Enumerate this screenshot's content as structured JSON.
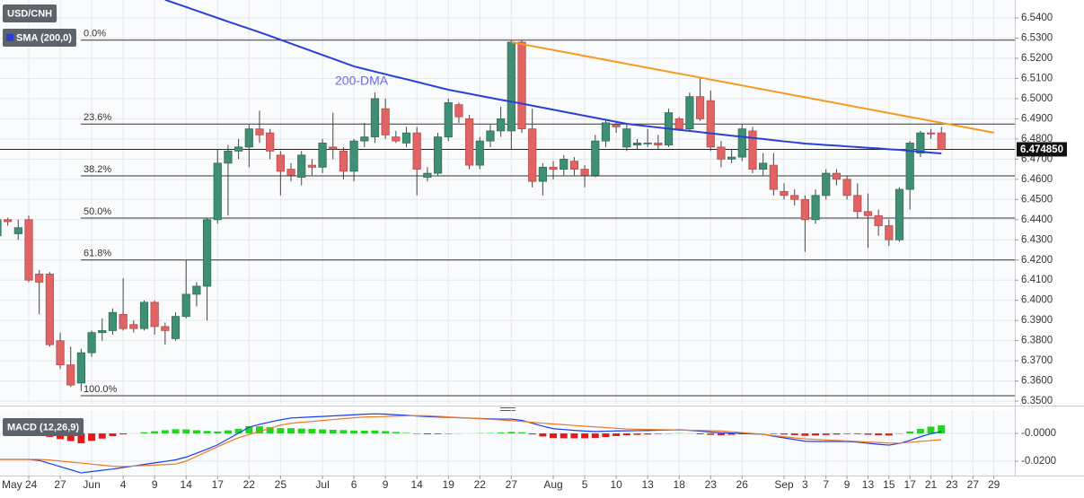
{
  "chart_data": [
    {
      "type": "candlestick",
      "title": "USD/CNH",
      "up_color": "#3f8f74",
      "down_color": "#e06464",
      "open": [
        6.432,
        6.44,
        6.433,
        6.44,
        6.413,
        6.413,
        6.38,
        6.368,
        6.359,
        6.374,
        6.384,
        6.385,
        6.393,
        6.388,
        6.386,
        6.399,
        6.387,
        6.381,
        6.392,
        6.403,
        6.407,
        6.44,
        6.468,
        6.474,
        6.476,
        6.485,
        6.483,
        6.472,
        6.465,
        6.461,
        6.467,
        6.466,
        6.476,
        6.474,
        6.464,
        6.479,
        6.481,
        6.495,
        6.481,
        6.478,
        6.483,
        6.461,
        6.463,
        6.481,
        6.497,
        6.49,
        6.467,
        6.479,
        6.484,
        6.484,
        6.528,
        6.485,
        6.459,
        6.466,
        6.465,
        6.469,
        6.465,
        6.462,
        6.479,
        6.487,
        6.476,
        6.477,
        6.478,
        6.478,
        6.477,
        6.49,
        6.485,
        6.501,
        6.499,
        6.476,
        6.47,
        6.471,
        6.484,
        6.465,
        6.467,
        6.454,
        6.452,
        6.45,
        6.44,
        6.452,
        6.463,
        6.46,
        6.452,
        6.444,
        6.442,
        6.437,
        6.43,
        6.455,
        6.473,
        6.483,
        6.483
      ],
      "high": [
        6.442,
        6.441,
        6.44,
        6.442,
        6.415,
        6.414,
        6.384,
        6.377,
        6.376,
        6.385,
        6.391,
        6.396,
        6.411,
        6.39,
        6.4,
        6.4,
        6.389,
        6.394,
        6.42,
        6.409,
        6.441,
        6.475,
        6.477,
        6.48,
        6.487,
        6.494,
        6.485,
        6.474,
        6.468,
        6.474,
        6.47,
        6.48,
        6.493,
        6.476,
        6.48,
        6.488,
        6.503,
        6.5,
        6.484,
        6.486,
        6.486,
        6.466,
        6.483,
        6.5,
        6.498,
        6.492,
        6.481,
        6.487,
        6.496,
        6.529,
        6.529,
        6.495,
        6.468,
        6.469,
        6.472,
        6.471,
        6.467,
        6.482,
        6.49,
        6.489,
        6.487,
        6.48,
        6.485,
        6.482,
        6.495,
        6.491,
        6.503,
        6.51,
        6.504,
        6.479,
        6.475,
        6.487,
        6.486,
        6.473,
        6.473,
        6.458,
        6.455,
        6.452,
        6.455,
        6.465,
        6.465,
        6.462,
        6.458,
        6.453,
        6.445,
        6.44,
        6.456,
        6.479,
        6.484,
        6.485,
        6.486
      ],
      "low": [
        6.43,
        6.437,
        6.43,
        6.409,
        6.393,
        6.377,
        6.366,
        6.357,
        6.355,
        6.372,
        6.38,
        6.383,
        6.385,
        6.384,
        6.385,
        6.383,
        6.378,
        6.38,
        6.391,
        6.397,
        6.39,
        6.438,
        6.442,
        6.47,
        6.466,
        6.478,
        6.47,
        6.452,
        6.459,
        6.457,
        6.462,
        6.463,
        6.47,
        6.46,
        6.459,
        6.476,
        6.478,
        6.48,
        6.478,
        6.476,
        6.452,
        6.459,
        6.462,
        6.479,
        6.488,
        6.465,
        6.465,
        6.476,
        6.481,
        6.475,
        6.483,
        6.456,
        6.452,
        6.46,
        6.462,
        6.462,
        6.456,
        6.461,
        6.476,
        6.483,
        6.474,
        6.475,
        6.476,
        6.475,
        6.476,
        6.484,
        6.484,
        6.489,
        6.474,
        6.466,
        6.468,
        6.469,
        6.463,
        6.462,
        6.452,
        6.45,
        6.447,
        6.424,
        6.438,
        6.45,
        6.457,
        6.45,
        6.441,
        6.426,
        6.432,
        6.427,
        6.429,
        6.445,
        6.471,
        6.48,
        6.4745
      ],
      "close": [
        6.44,
        6.439,
        6.436,
        6.41,
        6.409,
        6.378,
        6.368,
        6.358,
        6.374,
        6.384,
        6.385,
        6.394,
        6.386,
        6.386,
        6.399,
        6.387,
        6.385,
        6.392,
        6.403,
        6.407,
        6.44,
        6.468,
        6.474,
        6.476,
        6.485,
        6.482,
        6.474,
        6.464,
        6.462,
        6.472,
        6.466,
        6.478,
        6.475,
        6.464,
        6.479,
        6.481,
        6.5,
        6.482,
        6.479,
        6.483,
        6.465,
        6.463,
        6.481,
        6.498,
        6.491,
        6.467,
        6.479,
        6.484,
        6.49,
        6.528,
        6.485,
        6.459,
        6.466,
        6.465,
        6.47,
        6.465,
        6.462,
        6.479,
        6.488,
        6.486,
        6.485,
        6.478,
        6.478,
        6.477,
        6.493,
        6.485,
        6.501,
        6.49,
        6.476,
        6.47,
        6.471,
        6.485,
        6.465,
        6.468,
        6.455,
        6.452,
        6.45,
        6.44,
        6.452,
        6.463,
        6.46,
        6.452,
        6.444,
        6.442,
        6.437,
        6.43,
        6.455,
        6.478,
        6.483,
        6.4825,
        6.47485
      ],
      "overlays": [
        {
          "name": "SMA (200,0)",
          "color": "#2b3fd6",
          "values": [
            null,
            null,
            null,
            null,
            null,
            null,
            null,
            null,
            null,
            null,
            null,
            null,
            null,
            null,
            null,
            null,
            6.549,
            6.5472,
            6.5454,
            6.5436,
            6.5418,
            6.54,
            6.5382,
            6.5364,
            6.5347,
            6.5329,
            6.5311,
            6.5292,
            6.5273,
            6.5254,
            6.5235,
            6.5216,
            6.5198,
            6.5179,
            6.516,
            6.5147,
            6.5134,
            6.5121,
            6.5108,
            6.5096,
            6.5083,
            6.507,
            6.5057,
            6.5044,
            6.5034,
            6.5024,
            6.5014,
            6.5004,
            6.4994,
            6.4985,
            6.4975,
            6.4965,
            6.4955,
            6.4945,
            6.4935,
            6.4925,
            6.4915,
            6.4905,
            6.4895,
            6.4885,
            6.4875,
            6.4869,
            6.4863,
            6.4857,
            6.4851,
            6.4845,
            6.484,
            6.4834,
            6.4828,
            6.4822,
            6.4816,
            6.4811,
            6.4805,
            6.48,
            6.4794,
            6.4788,
            6.4783,
            6.4777,
            6.4774,
            6.477,
            6.4767,
            6.4763,
            6.476,
            6.4756,
            6.4753,
            6.4749,
            6.4746,
            6.4741,
            6.4737,
            6.4732,
            6.4728
          ]
        }
      ],
      "annotations": [
        {
          "text": "200-DMA",
          "color": "#6b6bea"
        }
      ],
      "trendline": {
        "color": "#f59a1e",
        "x": [
          49,
          95
        ],
        "values": [
          6.528,
          6.4831
        ]
      },
      "fib_levels": [
        {
          "label": "0.0%",
          "value": 6.529
        },
        {
          "label": "23.6%",
          "value": 6.4874
        },
        {
          "label": "38.2%",
          "value": 6.4617
        },
        {
          "label": "50.0%",
          "value": 6.4408
        },
        {
          "label": "61.8%",
          "value": 6.42
        },
        {
          "label": "100.0%",
          "value": 6.3527
        }
      ],
      "last_price": {
        "value": 6.47485,
        "label": "6.474850"
      },
      "xlim": [
        0.26,
        97
      ],
      "xticks": [
        {
          "value": 3,
          "label": "May 24"
        },
        {
          "value": 6,
          "label": "27"
        },
        {
          "value": 9,
          "label": "Jun"
        },
        {
          "value": 12,
          "label": "4"
        },
        {
          "value": 15,
          "label": "9"
        },
        {
          "value": 18,
          "label": "14"
        },
        {
          "value": 21,
          "label": "17"
        },
        {
          "value": 24,
          "label": "22"
        },
        {
          "value": 27,
          "label": "25"
        },
        {
          "value": 31,
          "label": "Jul"
        },
        {
          "value": 34,
          "label": "6"
        },
        {
          "value": 37,
          "label": "9"
        },
        {
          "value": 40,
          "label": "14"
        },
        {
          "value": 43,
          "label": "19"
        },
        {
          "value": 46,
          "label": "22"
        },
        {
          "value": 49,
          "label": "27"
        },
        {
          "value": 53,
          "label": "Aug"
        },
        {
          "value": 56,
          "label": "5"
        },
        {
          "value": 59,
          "label": "10"
        },
        {
          "value": 62,
          "label": "13"
        },
        {
          "value": 65,
          "label": "18"
        },
        {
          "value": 68,
          "label": "23"
        },
        {
          "value": 71,
          "label": "26"
        },
        {
          "value": 75,
          "label": "Sep"
        },
        {
          "value": 77,
          "label": "3"
        },
        {
          "value": 79,
          "label": "7"
        },
        {
          "value": 81,
          "label": "9"
        },
        {
          "value": 83,
          "label": "13"
        },
        {
          "value": 85,
          "label": "15"
        },
        {
          "value": 87,
          "label": "17"
        },
        {
          "value": 89,
          "label": "21"
        },
        {
          "value": 91,
          "label": "23"
        },
        {
          "value": 93,
          "label": "27"
        },
        {
          "value": 95,
          "label": "29"
        }
      ],
      "ylim": [
        6.3487,
        6.5489
      ],
      "yticks": [
        {
          "value": 6.35,
          "label": "6.3500"
        },
        {
          "value": 6.36,
          "label": "6.3600"
        },
        {
          "value": 6.37,
          "label": "6.3700"
        },
        {
          "value": 6.38,
          "label": "6.3800"
        },
        {
          "value": 6.39,
          "label": "6.3900"
        },
        {
          "value": 6.4,
          "label": "6.4000"
        },
        {
          "value": 6.41,
          "label": "6.4100"
        },
        {
          "value": 6.42,
          "label": "6.4200"
        },
        {
          "value": 6.43,
          "label": "6.4300"
        },
        {
          "value": 6.44,
          "label": "6.4400"
        },
        {
          "value": 6.45,
          "label": "6.4500"
        },
        {
          "value": 6.46,
          "label": "6.4600"
        },
        {
          "value": 6.47,
          "label": "6.4700"
        },
        {
          "value": 6.48,
          "label": "6.4800"
        },
        {
          "value": 6.49,
          "label": "6.4900"
        },
        {
          "value": 6.5,
          "label": "6.5000"
        },
        {
          "value": 6.51,
          "label": "6.5100"
        },
        {
          "value": 6.52,
          "label": "6.5200"
        },
        {
          "value": 6.53,
          "label": "6.5300"
        },
        {
          "value": 6.54,
          "label": "6.5400"
        }
      ],
      "grid": true
    },
    {
      "type": "macd",
      "title": "MACD (12,26,9)",
      "series": [
        {
          "color": "#1a3cf0",
          "values": [
            -0.0187,
            -0.0187,
            -0.0187,
            -0.0187,
            -0.0194,
            -0.0216,
            -0.0239,
            -0.0261,
            -0.0284,
            -0.0274,
            -0.0265,
            -0.0256,
            -0.0245,
            -0.0234,
            -0.0223,
            -0.0212,
            -0.0201,
            -0.019,
            -0.017,
            -0.0142,
            -0.0113,
            -0.0082,
            -0.004,
            0.0002,
            0.0044,
            0.0065,
            0.0082,
            0.0098,
            0.0111,
            0.0115,
            0.0119,
            0.0122,
            0.0126,
            0.013,
            0.0134,
            0.0138,
            0.0141,
            0.0139,
            0.0134,
            0.013,
            0.0125,
            0.0121,
            0.0118,
            0.0116,
            0.0113,
            0.011,
            0.0108,
            0.0105,
            0.0103,
            0.0103,
            0.0094,
            0.0073,
            0.0052,
            0.0034,
            0.0028,
            0.0022,
            0.0017,
            0.0014,
            0.0016,
            0.0018,
            0.0019,
            0.002,
            0.0021,
            0.0023,
            0.0024,
            0.0026,
            0.0022,
            0.0016,
            0.001,
            0.0005,
            0.0002,
            0.0,
            -0.0003,
            -0.0006,
            -0.002,
            -0.0032,
            -0.0044,
            -0.0056,
            -0.0058,
            -0.0058,
            -0.0058,
            -0.0058,
            -0.0063,
            -0.0071,
            -0.0078,
            -0.0084,
            -0.0072,
            -0.005,
            -0.0024,
            -0.0002,
            0.0013
          ]
        },
        {
          "color": "#f07a22",
          "values": [
            -0.0187,
            -0.0187,
            -0.0187,
            -0.0187,
            -0.0187,
            -0.0191,
            -0.0198,
            -0.0206,
            -0.0213,
            -0.0221,
            -0.0228,
            -0.0236,
            -0.0238,
            -0.0234,
            -0.0231,
            -0.0228,
            -0.0224,
            -0.022,
            -0.0199,
            -0.0165,
            -0.0131,
            -0.0096,
            -0.0062,
            -0.0031,
            -0.0008,
            0.0014,
            0.0037,
            0.006,
            0.0073,
            0.008,
            0.0086,
            0.0093,
            0.01,
            0.0106,
            0.0113,
            0.0118,
            0.012,
            0.0122,
            0.0124,
            0.0126,
            0.0128,
            0.0127,
            0.0123,
            0.0119,
            0.0114,
            0.011,
            0.0106,
            0.0102,
            0.0097,
            0.0092,
            0.0086,
            0.008,
            0.0074,
            0.0068,
            0.0063,
            0.0057,
            0.0052,
            0.0047,
            0.0042,
            0.0037,
            0.0032,
            0.003,
            0.0029,
            0.0027,
            0.0026,
            0.0024,
            0.0023,
            0.0022,
            0.002,
            0.0018,
            0.0012,
            0.0006,
            0.0,
            -0.0006,
            -0.0016,
            -0.0024,
            -0.0032,
            -0.0039,
            -0.0043,
            -0.0047,
            -0.005,
            -0.0054,
            -0.0058,
            -0.0062,
            -0.0065,
            -0.0069,
            -0.007,
            -0.0064,
            -0.0057,
            -0.0051,
            -0.0045
          ]
        }
      ],
      "histogram": {
        "up_color": "#21d421",
        "down_color": "#e81818",
        "values": [
          0,
          0,
          0,
          0,
          -0.0007,
          -0.0025,
          -0.0041,
          -0.0055,
          -0.0071,
          -0.0053,
          -0.0037,
          -0.002,
          -0.0007,
          0.0,
          0.0008,
          0.0016,
          0.0023,
          0.003,
          0.0029,
          0.0023,
          0.0018,
          0.0014,
          0.0022,
          0.0033,
          0.0052,
          0.0051,
          0.0045,
          0.0038,
          0.0038,
          0.0035,
          0.0033,
          0.0029,
          0.0026,
          0.0024,
          0.0021,
          0.002,
          0.0021,
          0.0017,
          0.001,
          0.0004,
          -0.0003,
          -0.0006,
          -0.0005,
          -0.0003,
          -0.0001,
          0.0,
          0.0002,
          0.0003,
          0.0006,
          0.0011,
          0.0008,
          -0.0007,
          -0.0022,
          -0.0034,
          -0.0035,
          -0.0035,
          -0.0035,
          -0.0033,
          -0.0026,
          -0.0019,
          -0.0013,
          -0.001,
          -0.0008,
          -0.0004,
          -0.0002,
          0.0002,
          -0.0001,
          -0.0006,
          -0.001,
          -0.0013,
          -0.001,
          -0.0006,
          -0.0003,
          0.0,
          -0.0004,
          -0.0008,
          -0.0012,
          -0.0017,
          -0.0015,
          -0.0011,
          -0.0008,
          -0.0004,
          -0.0005,
          -0.0009,
          -0.0013,
          -0.0015,
          -0.0002,
          0.0014,
          0.0033,
          0.0049,
          0.0058
        ]
      },
      "ylim": [
        -0.0303,
        0.0168
      ],
      "yticks": [
        {
          "value": 0,
          "label": "-0.0000"
        },
        {
          "value": -0.02,
          "label": "-0.0200"
        }
      ],
      "grid": true
    }
  ]
}
